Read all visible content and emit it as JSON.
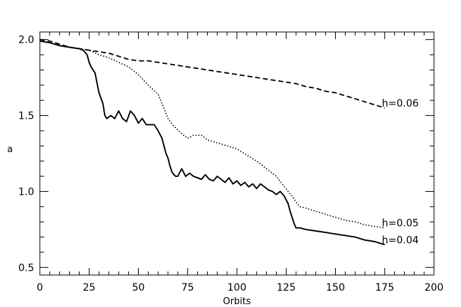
{
  "chart_data": {
    "type": "line",
    "title": "",
    "xlabel": "Orbits",
    "ylabel": "a",
    "xlim": [
      0,
      200
    ],
    "ylim": [
      0.45,
      2.05
    ],
    "xticks": [
      0,
      25,
      50,
      75,
      100,
      125,
      150,
      175,
      200
    ],
    "xtick_labels": [
      "0",
      "25",
      "50",
      "75",
      "100",
      "125",
      "150",
      "175",
      "200"
    ],
    "yticks": [
      0.5,
      1.0,
      1.5,
      2.0
    ],
    "ytick_labels": [
      "0.5",
      "1.0",
      "1.5",
      "2.0"
    ],
    "grid": false,
    "legend": "none",
    "series": [
      {
        "name": "h=0.06",
        "style": "dashed",
        "color": "#000000",
        "label": "h=0.06",
        "x": [
          0,
          5,
          10,
          15,
          20,
          25,
          30,
          35,
          40,
          45,
          50,
          55,
          60,
          65,
          70,
          75,
          80,
          85,
          90,
          95,
          100,
          105,
          110,
          115,
          120,
          125,
          130,
          135,
          140,
          145,
          150,
          155,
          160,
          165,
          170,
          175
        ],
        "y": [
          2.0,
          1.99,
          1.97,
          1.95,
          1.94,
          1.93,
          1.92,
          1.91,
          1.89,
          1.87,
          1.86,
          1.86,
          1.85,
          1.84,
          1.83,
          1.82,
          1.81,
          1.8,
          1.79,
          1.78,
          1.77,
          1.76,
          1.75,
          1.74,
          1.73,
          1.72,
          1.71,
          1.69,
          1.68,
          1.66,
          1.65,
          1.63,
          1.61,
          1.59,
          1.57,
          1.55
        ]
      },
      {
        "name": "h=0.05",
        "style": "dotted",
        "color": "#000000",
        "label": "h=0.05",
        "x": [
          0,
          5,
          10,
          15,
          20,
          25,
          30,
          35,
          40,
          45,
          50,
          55,
          60,
          62,
          65,
          68,
          72,
          75,
          78,
          82,
          85,
          90,
          95,
          100,
          105,
          110,
          115,
          120,
          123,
          126,
          128,
          130,
          132,
          135,
          140,
          145,
          150,
          155,
          160,
          165,
          170,
          175
        ],
        "y": [
          1.99,
          1.98,
          1.96,
          1.95,
          1.94,
          1.93,
          1.9,
          1.88,
          1.85,
          1.82,
          1.77,
          1.7,
          1.64,
          1.58,
          1.48,
          1.43,
          1.38,
          1.35,
          1.37,
          1.37,
          1.34,
          1.32,
          1.3,
          1.28,
          1.24,
          1.2,
          1.15,
          1.1,
          1.05,
          1.0,
          0.97,
          0.93,
          0.9,
          0.89,
          0.87,
          0.85,
          0.83,
          0.81,
          0.8,
          0.78,
          0.77,
          0.76
        ]
      },
      {
        "name": "h=0.04",
        "style": "solid",
        "color": "#000000",
        "label": "h=0.04",
        "x": [
          0,
          5,
          10,
          15,
          20,
          22,
          24,
          25,
          26,
          28,
          30,
          32,
          33,
          34,
          36,
          38,
          40,
          42,
          44,
          46,
          48,
          50,
          52,
          54,
          56,
          58,
          60,
          62,
          63,
          64,
          65,
          66,
          67,
          68,
          69,
          70,
          72,
          74,
          76,
          78,
          80,
          82,
          84,
          86,
          88,
          90,
          92,
          94,
          96,
          98,
          100,
          102,
          104,
          106,
          108,
          110,
          112,
          114,
          116,
          118,
          120,
          122,
          124,
          126,
          127,
          128,
          129,
          130,
          131,
          132,
          135,
          140,
          145,
          150,
          155,
          160,
          165,
          170,
          175
        ],
        "y": [
          1.99,
          1.98,
          1.96,
          1.95,
          1.94,
          1.93,
          1.9,
          1.85,
          1.82,
          1.78,
          1.65,
          1.58,
          1.5,
          1.48,
          1.5,
          1.48,
          1.53,
          1.48,
          1.46,
          1.53,
          1.5,
          1.45,
          1.48,
          1.44,
          1.44,
          1.44,
          1.4,
          1.35,
          1.3,
          1.25,
          1.22,
          1.17,
          1.13,
          1.11,
          1.1,
          1.1,
          1.15,
          1.1,
          1.12,
          1.1,
          1.09,
          1.08,
          1.11,
          1.08,
          1.07,
          1.1,
          1.08,
          1.06,
          1.09,
          1.05,
          1.07,
          1.04,
          1.06,
          1.03,
          1.05,
          1.02,
          1.05,
          1.03,
          1.01,
          1.0,
          0.98,
          1.0,
          0.97,
          0.92,
          0.87,
          0.83,
          0.79,
          0.76,
          0.76,
          0.76,
          0.75,
          0.74,
          0.73,
          0.72,
          0.71,
          0.7,
          0.68,
          0.67,
          0.65
        ]
      }
    ]
  }
}
